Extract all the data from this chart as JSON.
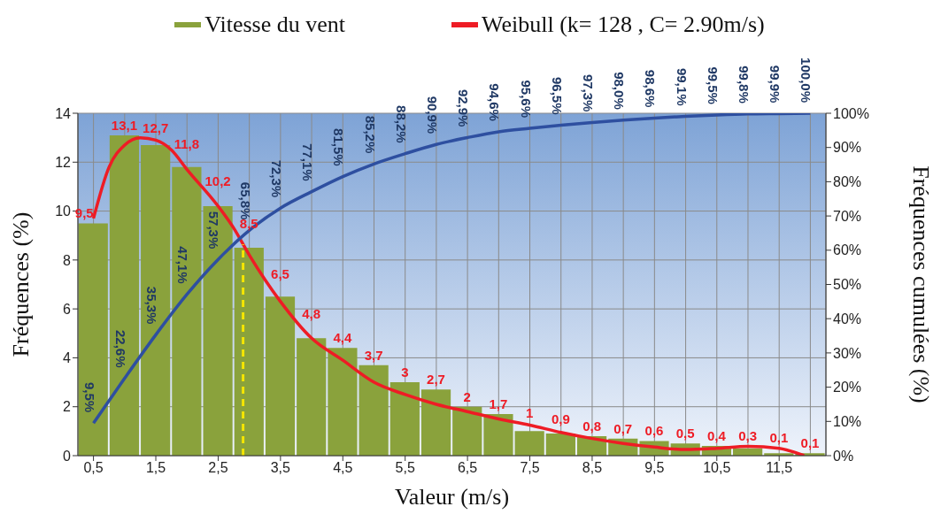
{
  "chart_data": {
    "type": "bar",
    "xlabel": "Valeur (m/s)",
    "ylabel": "Fréquences (%)",
    "y2label": "Fréquences cumulées (%)",
    "series": [
      {
        "name": "Vitesse du vent",
        "color": "#8aa23c",
        "x": [
          0.5,
          1,
          1.5,
          2,
          2.5,
          3,
          3.5,
          4,
          4.5,
          5,
          5.5,
          6,
          6.5,
          7,
          7.5,
          8,
          8.5,
          9,
          9.5,
          10,
          10.5,
          11,
          11.5,
          12
        ],
        "values": [
          9.5,
          13.1,
          12.7,
          11.8,
          10.2,
          8.5,
          6.5,
          4.8,
          4.4,
          3.7,
          3,
          2.7,
          2,
          1.7,
          1,
          0.9,
          0.8,
          0.7,
          0.6,
          0.5,
          0.4,
          0.3,
          0.1,
          0.1
        ],
        "value_labels": [
          "9,5",
          "13,1",
          "12,7",
          "11,8",
          "10,2",
          "8,5",
          "6,5",
          "4,8",
          "4,4",
          "3,7",
          "3",
          "2,7",
          "2",
          "1,7",
          "1",
          "0,9",
          "0,8",
          "0,7",
          "0,6",
          "0,5",
          "0,4",
          "0,3",
          "0,1",
          "0,1"
        ]
      },
      {
        "name": "Weibull (k= 128 , C= 2.90m/s)",
        "type": "line",
        "color": "#ee1c25",
        "x": [
          0.5,
          0.75,
          1,
          1.25,
          1.5,
          1.75,
          2,
          2.5,
          2.75,
          3,
          3.25,
          3.5,
          4,
          4.5,
          5,
          5.5,
          6,
          6.5,
          7,
          7.5,
          8,
          8.5,
          9,
          9.5,
          10,
          10.5,
          11,
          11.5,
          11.9
        ],
        "values": [
          9.7,
          11.8,
          12.7,
          13,
          12.9,
          12.5,
          11.7,
          10.2,
          9.3,
          8.2,
          7.2,
          6.3,
          4.8,
          3.9,
          3,
          2.5,
          2.1,
          1.8,
          1.5,
          1.25,
          0.95,
          0.7,
          0.5,
          0.35,
          0.25,
          0.3,
          0.38,
          0.3,
          0
        ]
      },
      {
        "type": "line",
        "axis": "y2",
        "color": "#2e4fa0",
        "x": [
          0.5,
          1,
          1.5,
          2,
          2.5,
          3,
          3.5,
          4,
          4.5,
          5,
          5.5,
          6,
          6.5,
          7,
          7.5,
          8,
          8.5,
          9,
          9.5,
          10,
          10.5,
          11,
          11.5,
          12
        ],
        "values": [
          9.5,
          22.6,
          35.3,
          47.1,
          57.3,
          65.8,
          72.3,
          77.1,
          81.5,
          85.2,
          88.2,
          90.9,
          92.9,
          94.6,
          95.6,
          96.5,
          97.3,
          98,
          98.6,
          99.1,
          99.5,
          99.8,
          99.9,
          100
        ],
        "value_labels": [
          "9,5%",
          "22,6%",
          "35,3%",
          "47,1%",
          "57,3%",
          "65,8%",
          "72,3%",
          "77,1%",
          "81,5%",
          "85,2%",
          "88,2%",
          "90,9%",
          "92,9%",
          "94,6%",
          "95,6%",
          "96,5%",
          "97,3%",
          "98,0%",
          "98,6%",
          "99,1%",
          "99,5%",
          "99,8%",
          "99,9%",
          "100,0%"
        ]
      }
    ],
    "xlim": [
      0.25,
      12.25
    ],
    "xticks": [
      {
        "value": 0.5,
        "label": "0,5"
      },
      {
        "value": 1.5,
        "label": "1,5"
      },
      {
        "value": 2.5,
        "label": "2,5"
      },
      {
        "value": 3.5,
        "label": "3,5"
      },
      {
        "value": 4.5,
        "label": "4,5"
      },
      {
        "value": 5.5,
        "label": "5,5"
      },
      {
        "value": 6.5,
        "label": "6,5"
      },
      {
        "value": 7.5,
        "label": "7,5"
      },
      {
        "value": 8.5,
        "label": "8,5"
      },
      {
        "value": 9.5,
        "label": "9,5"
      },
      {
        "value": 10.5,
        "label": "10,5"
      },
      {
        "value": 11.5,
        "label": "11,5"
      }
    ],
    "ylim": [
      0,
      14
    ],
    "yticks": [
      0,
      2,
      4,
      6,
      8,
      10,
      12,
      14
    ],
    "y2lim": [
      0,
      100
    ],
    "y2ticks": [
      {
        "value": 0,
        "label": "0%"
      },
      {
        "value": 10,
        "label": "10%"
      },
      {
        "value": 20,
        "label": "20%"
      },
      {
        "value": 30,
        "label": "30%"
      },
      {
        "value": 40,
        "label": "40%"
      },
      {
        "value": 50,
        "label": "50%"
      },
      {
        "value": 60,
        "label": "60%"
      },
      {
        "value": 70,
        "label": "70%"
      },
      {
        "value": 80,
        "label": "80%"
      },
      {
        "value": 90,
        "label": "90%"
      },
      {
        "value": 100,
        "label": "100%"
      }
    ],
    "ref_lines": [
      {
        "axis": "x",
        "value": 2.9,
        "color": "#f5e600",
        "line_style": "dashed"
      }
    ],
    "grid": true,
    "legend": "top"
  }
}
